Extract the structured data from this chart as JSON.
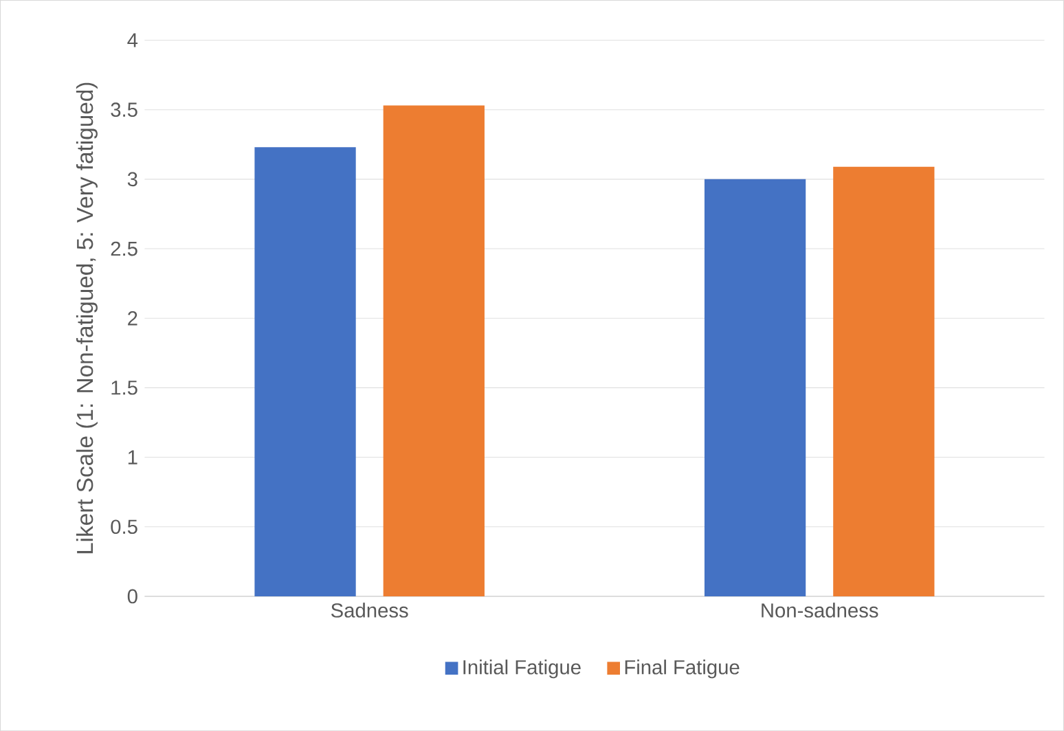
{
  "chart_data": {
    "type": "bar",
    "ylabel": "Likert Scale (1: Non-fatigued, 5: Very fatigued)",
    "categories": [
      "Sadness",
      "Non-sadness"
    ],
    "series": [
      {
        "name": "Initial Fatigue",
        "color": "#4472c4",
        "values": [
          3.23,
          3.0
        ]
      },
      {
        "name": "Final Fatigue",
        "color": "#ed7d31",
        "values": [
          3.53,
          3.09
        ]
      }
    ],
    "ylim": [
      0,
      4
    ],
    "yticks": [
      0,
      0.5,
      1,
      1.5,
      2,
      2.5,
      3,
      3.5,
      4
    ],
    "grid": "y",
    "legend": "bottom"
  }
}
